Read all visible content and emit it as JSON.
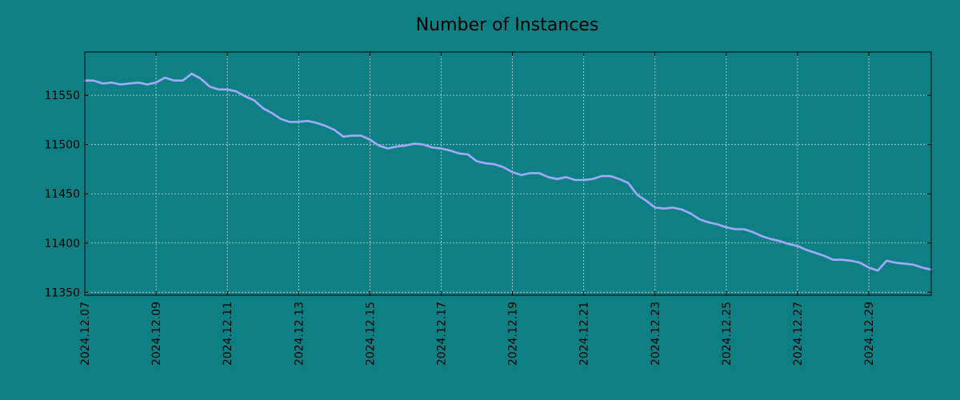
{
  "chart_data": {
    "type": "line",
    "title": "Number of Instances",
    "xlabel": "",
    "ylabel": "",
    "x_start": "2024.12.07",
    "x_end": "2024.12.30 18:00",
    "x_ticks": [
      "2024.12.07",
      "2024.12.09",
      "2024.12.11",
      "2024.12.13",
      "2024.12.15",
      "2024.12.17",
      "2024.12.19",
      "2024.12.21",
      "2024.12.23",
      "2024.12.25",
      "2024.12.27",
      "2024.12.29"
    ],
    "y_ticks": [
      11350,
      11400,
      11450,
      11500,
      11550
    ],
    "ylim": [
      11347,
      11594
    ],
    "grid": true,
    "colors": {
      "background": "#0e8084",
      "line": "#a4a8ff",
      "grid": "#c8d8d8",
      "axes": "#000000"
    },
    "series": [
      {
        "x": [
          "2024.12.07 00:00",
          "2024.12.07 06:00",
          "2024.12.07 12:00",
          "2024.12.07 18:00",
          "2024.12.08 00:00",
          "2024.12.08 06:00",
          "2024.12.08 12:00",
          "2024.12.08 18:00",
          "2024.12.09 00:00",
          "2024.12.09 06:00",
          "2024.12.09 12:00",
          "2024.12.09 18:00",
          "2024.12.10 00:00",
          "2024.12.10 06:00",
          "2024.12.10 12:00",
          "2024.12.10 18:00",
          "2024.12.11 00:00",
          "2024.12.11 06:00",
          "2024.12.11 12:00",
          "2024.12.11 18:00",
          "2024.12.12 00:00",
          "2024.12.12 06:00",
          "2024.12.12 12:00",
          "2024.12.12 18:00",
          "2024.12.13 00:00",
          "2024.12.13 06:00",
          "2024.12.13 12:00",
          "2024.12.13 18:00",
          "2024.12.14 00:00",
          "2024.12.14 06:00",
          "2024.12.14 12:00",
          "2024.12.14 18:00",
          "2024.12.15 00:00",
          "2024.12.15 06:00",
          "2024.12.15 12:00",
          "2024.12.15 18:00",
          "2024.12.16 00:00",
          "2024.12.16 06:00",
          "2024.12.16 12:00",
          "2024.12.16 18:00",
          "2024.12.17 00:00",
          "2024.12.17 06:00",
          "2024.12.17 12:00",
          "2024.12.17 18:00",
          "2024.12.18 00:00",
          "2024.12.18 06:00",
          "2024.12.18 12:00",
          "2024.12.18 18:00",
          "2024.12.19 00:00",
          "2024.12.19 06:00",
          "2024.12.19 12:00",
          "2024.12.19 18:00",
          "2024.12.20 00:00",
          "2024.12.20 06:00",
          "2024.12.20 12:00",
          "2024.12.20 18:00",
          "2024.12.21 00:00",
          "2024.12.21 06:00",
          "2024.12.21 12:00",
          "2024.12.21 18:00",
          "2024.12.22 00:00",
          "2024.12.22 06:00",
          "2024.12.22 12:00",
          "2024.12.22 18:00",
          "2024.12.23 00:00",
          "2024.12.23 06:00",
          "2024.12.23 12:00",
          "2024.12.23 18:00",
          "2024.12.24 00:00",
          "2024.12.24 06:00",
          "2024.12.24 12:00",
          "2024.12.24 18:00",
          "2024.12.25 00:00",
          "2024.12.25 06:00",
          "2024.12.25 12:00",
          "2024.12.25 18:00",
          "2024.12.26 00:00",
          "2024.12.26 06:00",
          "2024.12.26 12:00",
          "2024.12.26 18:00",
          "2024.12.27 00:00",
          "2024.12.27 06:00",
          "2024.12.27 12:00",
          "2024.12.27 18:00",
          "2024.12.28 00:00",
          "2024.12.28 06:00",
          "2024.12.28 12:00",
          "2024.12.28 18:00",
          "2024.12.29 00:00",
          "2024.12.29 06:00",
          "2024.12.29 12:00",
          "2024.12.29 18:00",
          "2024.12.30 00:00",
          "2024.12.30 06:00",
          "2024.12.30 12:00",
          "2024.12.30 18:00"
        ],
        "values": [
          11565,
          11565,
          11562,
          11563,
          11561,
          11562,
          11563,
          11561,
          11563,
          11568,
          11565,
          11565,
          11572,
          11567,
          11559,
          11556,
          11556,
          11554,
          11549,
          11545,
          11537,
          11532,
          11526,
          11523,
          11523,
          11524,
          11522,
          11519,
          11515,
          11508,
          11509,
          11509,
          11505,
          11499,
          11496,
          11498,
          11499,
          11501,
          11500,
          11497,
          11496,
          11494,
          11491,
          11490,
          11483,
          11481,
          11480,
          11477,
          11472,
          11469,
          11471,
          11471,
          11467,
          11465,
          11467,
          11464,
          11464,
          11465,
          11468,
          11468,
          11465,
          11461,
          11449,
          11443,
          11436,
          11435,
          11436,
          11434,
          11430,
          11424,
          11421,
          11419,
          11416,
          11414,
          11414,
          11411,
          11407,
          11404,
          11402,
          11399,
          11397,
          11393,
          11390,
          11387,
          11383,
          11383,
          11382,
          11380,
          11375,
          11372,
          11382,
          11380,
          11379,
          11378,
          11375,
          11373
        ]
      }
    ]
  }
}
